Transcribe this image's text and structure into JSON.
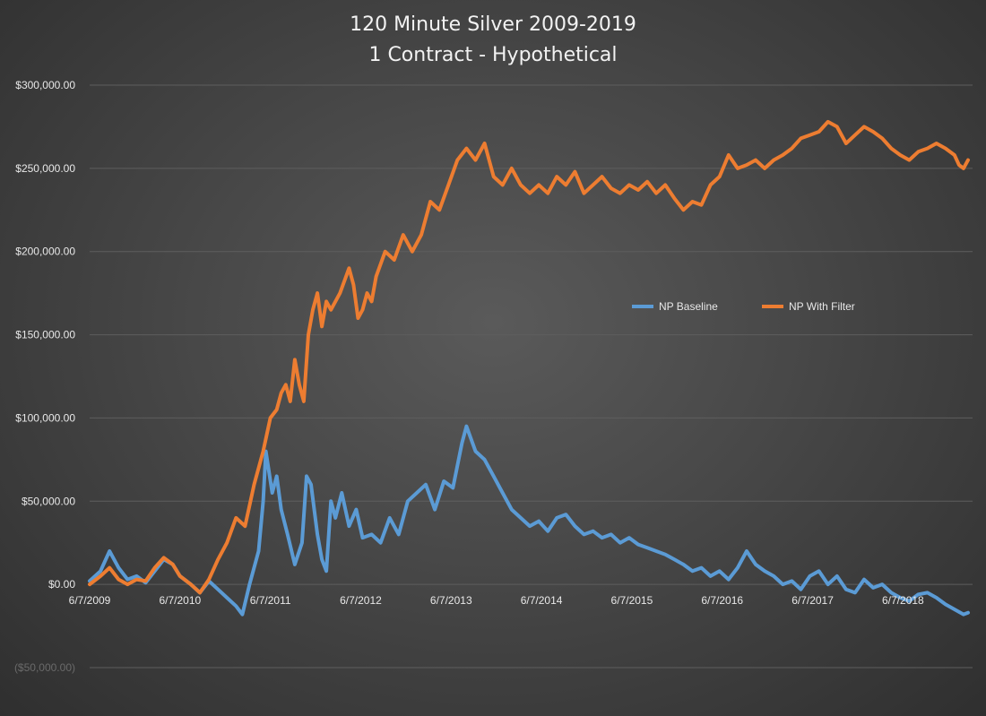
{
  "chart_data": {
    "type": "line",
    "title": "120 Minute Silver 2009-2019",
    "subtitle": "1 Contract - Hypothetical",
    "xlabel": "",
    "ylabel": "",
    "ylim": [
      -50000,
      300000
    ],
    "xlim": [
      2009.43,
      2019.2
    ],
    "grid": true,
    "legend_position": "right-middle",
    "y_ticks": [
      {
        "value": 300000,
        "label": "$300,000.00"
      },
      {
        "value": 250000,
        "label": "$250,000.00"
      },
      {
        "value": 200000,
        "label": "$200,000.00"
      },
      {
        "value": 150000,
        "label": "$150,000.00"
      },
      {
        "value": 100000,
        "label": "$100,000.00"
      },
      {
        "value": 50000,
        "label": "$50,000.00"
      },
      {
        "value": 0,
        "label": "$0.00"
      },
      {
        "value": -50000,
        "label": "($50,000.00)"
      }
    ],
    "x_ticks": [
      {
        "value": 2009.43,
        "label": "6/7/2009"
      },
      {
        "value": 2010.43,
        "label": "6/7/2010"
      },
      {
        "value": 2011.43,
        "label": "6/7/2011"
      },
      {
        "value": 2012.43,
        "label": "6/7/2012"
      },
      {
        "value": 2013.43,
        "label": "6/7/2013"
      },
      {
        "value": 2014.43,
        "label": "6/7/2014"
      },
      {
        "value": 2015.43,
        "label": "6/7/2015"
      },
      {
        "value": 2016.43,
        "label": "6/7/2016"
      },
      {
        "value": 2017.43,
        "label": "6/7/2017"
      },
      {
        "value": 2018.43,
        "label": "6/7/2018"
      }
    ],
    "series": [
      {
        "name": "NP Baseline",
        "color": "#5b9bd5",
        "points": [
          [
            2009.43,
            2000
          ],
          [
            2009.55,
            8000
          ],
          [
            2009.65,
            20000
          ],
          [
            2009.75,
            10000
          ],
          [
            2009.85,
            3000
          ],
          [
            2009.95,
            5000
          ],
          [
            2010.05,
            1000
          ],
          [
            2010.15,
            8000
          ],
          [
            2010.25,
            15000
          ],
          [
            2010.35,
            12000
          ],
          [
            2010.43,
            5000
          ],
          [
            2010.55,
            0
          ],
          [
            2010.65,
            -5000
          ],
          [
            2010.75,
            2000
          ],
          [
            2010.85,
            -3000
          ],
          [
            2010.95,
            -8000
          ],
          [
            2011.05,
            -13000
          ],
          [
            2011.12,
            -18000
          ],
          [
            2011.2,
            0
          ],
          [
            2011.3,
            20000
          ],
          [
            2011.35,
            50000
          ],
          [
            2011.38,
            80000
          ],
          [
            2011.45,
            55000
          ],
          [
            2011.5,
            65000
          ],
          [
            2011.55,
            45000
          ],
          [
            2011.62,
            30000
          ],
          [
            2011.7,
            12000
          ],
          [
            2011.78,
            25000
          ],
          [
            2011.83,
            65000
          ],
          [
            2011.88,
            60000
          ],
          [
            2011.95,
            30000
          ],
          [
            2012.0,
            15000
          ],
          [
            2012.05,
            8000
          ],
          [
            2012.1,
            50000
          ],
          [
            2012.15,
            40000
          ],
          [
            2012.22,
            55000
          ],
          [
            2012.3,
            35000
          ],
          [
            2012.38,
            45000
          ],
          [
            2012.45,
            28000
          ],
          [
            2012.55,
            30000
          ],
          [
            2012.65,
            25000
          ],
          [
            2012.75,
            40000
          ],
          [
            2012.85,
            30000
          ],
          [
            2012.95,
            50000
          ],
          [
            2013.05,
            55000
          ],
          [
            2013.15,
            60000
          ],
          [
            2013.25,
            45000
          ],
          [
            2013.35,
            62000
          ],
          [
            2013.45,
            58000
          ],
          [
            2013.55,
            85000
          ],
          [
            2013.6,
            95000
          ],
          [
            2013.7,
            80000
          ],
          [
            2013.8,
            75000
          ],
          [
            2013.9,
            65000
          ],
          [
            2014.0,
            55000
          ],
          [
            2014.1,
            45000
          ],
          [
            2014.2,
            40000
          ],
          [
            2014.3,
            35000
          ],
          [
            2014.4,
            38000
          ],
          [
            2014.5,
            32000
          ],
          [
            2014.6,
            40000
          ],
          [
            2014.7,
            42000
          ],
          [
            2014.8,
            35000
          ],
          [
            2014.9,
            30000
          ],
          [
            2015.0,
            32000
          ],
          [
            2015.1,
            28000
          ],
          [
            2015.2,
            30000
          ],
          [
            2015.3,
            25000
          ],
          [
            2015.4,
            28000
          ],
          [
            2015.5,
            24000
          ],
          [
            2015.6,
            22000
          ],
          [
            2015.7,
            20000
          ],
          [
            2015.8,
            18000
          ],
          [
            2015.9,
            15000
          ],
          [
            2016.0,
            12000
          ],
          [
            2016.1,
            8000
          ],
          [
            2016.2,
            10000
          ],
          [
            2016.3,
            5000
          ],
          [
            2016.4,
            8000
          ],
          [
            2016.5,
            3000
          ],
          [
            2016.6,
            10000
          ],
          [
            2016.7,
            20000
          ],
          [
            2016.8,
            12000
          ],
          [
            2016.9,
            8000
          ],
          [
            2017.0,
            5000
          ],
          [
            2017.1,
            0
          ],
          [
            2017.2,
            2000
          ],
          [
            2017.3,
            -3000
          ],
          [
            2017.4,
            5000
          ],
          [
            2017.5,
            8000
          ],
          [
            2017.6,
            0
          ],
          [
            2017.7,
            5000
          ],
          [
            2017.8,
            -3000
          ],
          [
            2017.9,
            -5000
          ],
          [
            2018.0,
            3000
          ],
          [
            2018.1,
            -2000
          ],
          [
            2018.2,
            0
          ],
          [
            2018.3,
            -5000
          ],
          [
            2018.4,
            -8000
          ],
          [
            2018.5,
            -10000
          ],
          [
            2018.6,
            -6000
          ],
          [
            2018.7,
            -5000
          ],
          [
            2018.8,
            -8000
          ],
          [
            2018.9,
            -12000
          ],
          [
            2019.0,
            -15000
          ],
          [
            2019.1,
            -18000
          ],
          [
            2019.15,
            -17000
          ]
        ]
      },
      {
        "name": "NP With Filter",
        "color": "#ed7d31",
        "points": [
          [
            2009.43,
            0
          ],
          [
            2009.55,
            5000
          ],
          [
            2009.65,
            10000
          ],
          [
            2009.75,
            3000
          ],
          [
            2009.85,
            0
          ],
          [
            2009.95,
            3000
          ],
          [
            2010.05,
            2000
          ],
          [
            2010.15,
            10000
          ],
          [
            2010.25,
            16000
          ],
          [
            2010.35,
            12000
          ],
          [
            2010.43,
            5000
          ],
          [
            2010.55,
            0
          ],
          [
            2010.65,
            -5000
          ],
          [
            2010.75,
            3000
          ],
          [
            2010.85,
            15000
          ],
          [
            2010.95,
            25000
          ],
          [
            2011.05,
            40000
          ],
          [
            2011.15,
            35000
          ],
          [
            2011.25,
            60000
          ],
          [
            2011.35,
            80000
          ],
          [
            2011.43,
            100000
          ],
          [
            2011.5,
            105000
          ],
          [
            2011.55,
            115000
          ],
          [
            2011.6,
            120000
          ],
          [
            2011.65,
            110000
          ],
          [
            2011.7,
            135000
          ],
          [
            2011.75,
            120000
          ],
          [
            2011.8,
            110000
          ],
          [
            2011.85,
            150000
          ],
          [
            2011.9,
            165000
          ],
          [
            2011.95,
            175000
          ],
          [
            2012.0,
            155000
          ],
          [
            2012.05,
            170000
          ],
          [
            2012.1,
            165000
          ],
          [
            2012.2,
            175000
          ],
          [
            2012.3,
            190000
          ],
          [
            2012.35,
            180000
          ],
          [
            2012.4,
            160000
          ],
          [
            2012.45,
            165000
          ],
          [
            2012.5,
            175000
          ],
          [
            2012.55,
            170000
          ],
          [
            2012.6,
            185000
          ],
          [
            2012.7,
            200000
          ],
          [
            2012.8,
            195000
          ],
          [
            2012.9,
            210000
          ],
          [
            2013.0,
            200000
          ],
          [
            2013.1,
            210000
          ],
          [
            2013.2,
            230000
          ],
          [
            2013.3,
            225000
          ],
          [
            2013.4,
            240000
          ],
          [
            2013.5,
            255000
          ],
          [
            2013.6,
            262000
          ],
          [
            2013.7,
            255000
          ],
          [
            2013.8,
            265000
          ],
          [
            2013.9,
            245000
          ],
          [
            2014.0,
            240000
          ],
          [
            2014.1,
            250000
          ],
          [
            2014.2,
            240000
          ],
          [
            2014.3,
            235000
          ],
          [
            2014.4,
            240000
          ],
          [
            2014.5,
            235000
          ],
          [
            2014.6,
            245000
          ],
          [
            2014.7,
            240000
          ],
          [
            2014.8,
            248000
          ],
          [
            2014.9,
            235000
          ],
          [
            2015.0,
            240000
          ],
          [
            2015.1,
            245000
          ],
          [
            2015.2,
            238000
          ],
          [
            2015.3,
            235000
          ],
          [
            2015.4,
            240000
          ],
          [
            2015.5,
            237000
          ],
          [
            2015.6,
            242000
          ],
          [
            2015.7,
            235000
          ],
          [
            2015.8,
            240000
          ],
          [
            2015.9,
            232000
          ],
          [
            2016.0,
            225000
          ],
          [
            2016.1,
            230000
          ],
          [
            2016.2,
            228000
          ],
          [
            2016.3,
            240000
          ],
          [
            2016.4,
            245000
          ],
          [
            2016.5,
            258000
          ],
          [
            2016.6,
            250000
          ],
          [
            2016.7,
            252000
          ],
          [
            2016.8,
            255000
          ],
          [
            2016.9,
            250000
          ],
          [
            2017.0,
            255000
          ],
          [
            2017.1,
            258000
          ],
          [
            2017.2,
            262000
          ],
          [
            2017.3,
            268000
          ],
          [
            2017.4,
            270000
          ],
          [
            2017.5,
            272000
          ],
          [
            2017.6,
            278000
          ],
          [
            2017.7,
            275000
          ],
          [
            2017.8,
            265000
          ],
          [
            2017.9,
            270000
          ],
          [
            2018.0,
            275000
          ],
          [
            2018.1,
            272000
          ],
          [
            2018.2,
            268000
          ],
          [
            2018.3,
            262000
          ],
          [
            2018.4,
            258000
          ],
          [
            2018.5,
            255000
          ],
          [
            2018.6,
            260000
          ],
          [
            2018.7,
            262000
          ],
          [
            2018.8,
            265000
          ],
          [
            2018.9,
            262000
          ],
          [
            2019.0,
            258000
          ],
          [
            2019.05,
            252000
          ],
          [
            2019.1,
            250000
          ],
          [
            2019.15,
            255000
          ]
        ]
      }
    ]
  }
}
